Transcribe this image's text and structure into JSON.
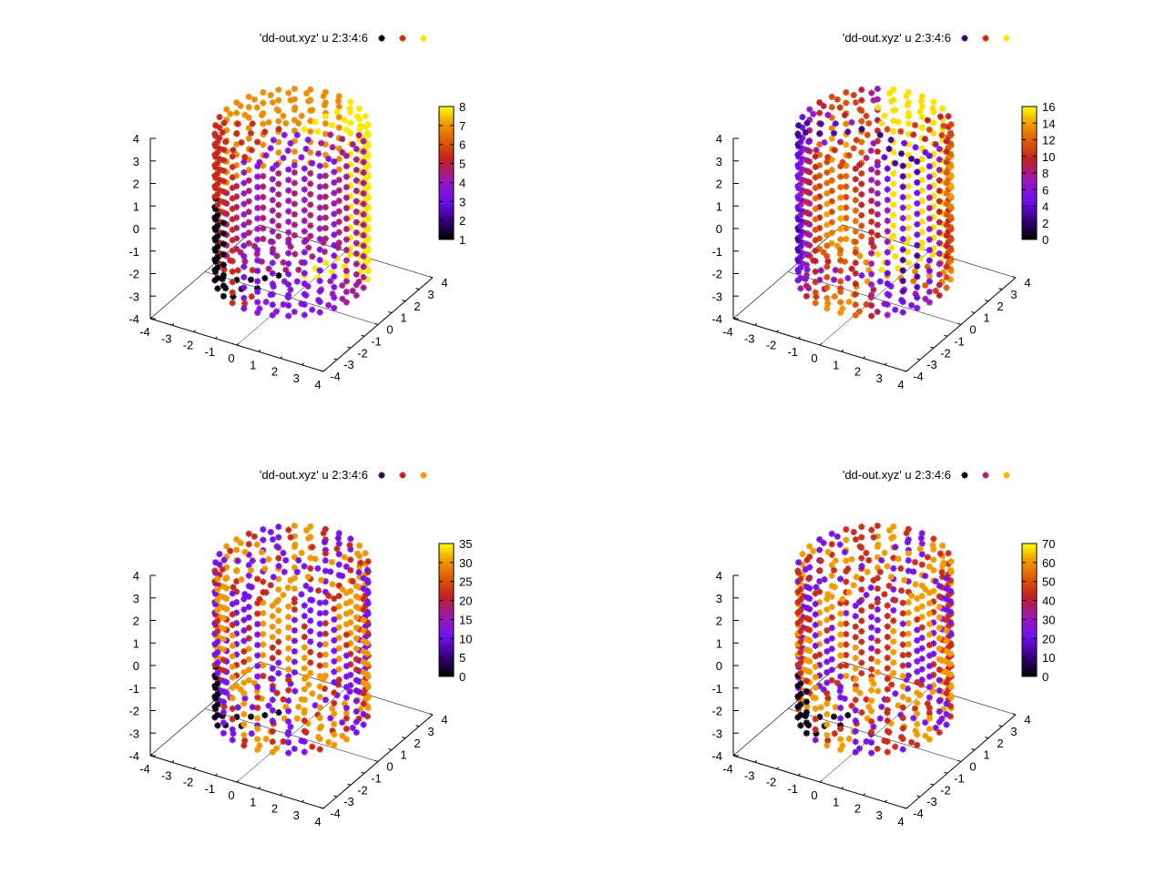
{
  "chart_data": [
    {
      "type": "scatter3d",
      "legend": {
        "label": "'dd-out.xyz' u 2:3:4:6",
        "marker_colors": [
          "#000000",
          "#c03000",
          "#ffe000"
        ]
      },
      "colorbar": {
        "range": [
          1,
          8
        ],
        "ticks": [
          1,
          2,
          3,
          4,
          5,
          6,
          7,
          8
        ]
      },
      "axes": {
        "x": {
          "range": [
            -4,
            4
          ],
          "ticks": [
            -4,
            -3,
            -2,
            -1,
            0,
            1,
            2,
            3,
            4
          ]
        },
        "y": {
          "range": [
            -4,
            4
          ],
          "ticks": [
            -4,
            -3,
            -2,
            -1,
            0,
            1,
            2,
            3,
            4
          ]
        },
        "z": {
          "range": [
            -4,
            4
          ],
          "ticks": [
            -4,
            -3,
            -2,
            -1,
            0,
            1,
            2,
            3,
            4
          ]
        }
      },
      "cylinder": {
        "radius": 3,
        "z_range": [
          -3,
          3.5
        ]
      }
    },
    {
      "type": "scatter3d",
      "legend": {
        "label": "'dd-out.xyz' u 2:3:4:6",
        "marker_colors": [
          "#3a006a",
          "#c03000",
          "#ffe000"
        ]
      },
      "colorbar": {
        "range": [
          0,
          16
        ],
        "ticks": [
          0,
          2,
          4,
          6,
          8,
          10,
          12,
          14,
          16
        ]
      },
      "axes": {
        "x": {
          "range": [
            -4,
            4
          ],
          "ticks": [
            -4,
            -3,
            -2,
            -1,
            0,
            1,
            2,
            3,
            4
          ]
        },
        "y": {
          "range": [
            -4,
            4
          ],
          "ticks": [
            -4,
            -3,
            -2,
            -1,
            0,
            1,
            2,
            3,
            4
          ]
        },
        "z": {
          "range": [
            -4,
            4
          ],
          "ticks": [
            -4,
            -3,
            -2,
            -1,
            0,
            1,
            2,
            3,
            4
          ]
        }
      },
      "cylinder": {
        "radius": 3,
        "z_range": [
          -3,
          3.5
        ]
      }
    },
    {
      "type": "scatter3d",
      "legend": {
        "label": "'dd-out.xyz' u 2:3:4:6",
        "marker_colors": [
          "#2a0040",
          "#c02020",
          "#ff9000"
        ]
      },
      "colorbar": {
        "range": [
          0,
          35
        ],
        "ticks": [
          0,
          5,
          10,
          15,
          20,
          25,
          30,
          35
        ]
      },
      "axes": {
        "x": {
          "range": [
            -4,
            4
          ],
          "ticks": [
            -4,
            -3,
            -2,
            -1,
            0,
            1,
            2,
            3,
            4
          ]
        },
        "y": {
          "range": [
            -4,
            4
          ],
          "ticks": [
            -4,
            -3,
            -2,
            -1,
            0,
            1,
            2,
            3,
            4
          ]
        },
        "z": {
          "range": [
            -4,
            4
          ],
          "ticks": [
            -4,
            -3,
            -2,
            -1,
            0,
            1,
            2,
            3,
            4
          ]
        }
      },
      "cylinder": {
        "radius": 3,
        "z_range": [
          -3,
          3.5
        ]
      }
    },
    {
      "type": "scatter3d",
      "legend": {
        "label": "'dd-out.xyz' u 2:3:4:6",
        "marker_colors": [
          "#000000",
          "#a02060",
          "#ffb000"
        ]
      },
      "colorbar": {
        "range": [
          0,
          70
        ],
        "ticks": [
          0,
          10,
          20,
          30,
          40,
          50,
          60,
          70
        ]
      },
      "axes": {
        "x": {
          "range": [
            -4,
            4
          ],
          "ticks": [
            -4,
            -3,
            -2,
            -1,
            0,
            1,
            2,
            3,
            4
          ]
        },
        "y": {
          "range": [
            -4,
            4
          ],
          "ticks": [
            -4,
            -3,
            -2,
            -1,
            0,
            1,
            2,
            3,
            4
          ]
        },
        "z": {
          "range": [
            -4,
            4
          ],
          "ticks": [
            -4,
            -3,
            -2,
            -1,
            0,
            1,
            2,
            3,
            4
          ]
        }
      },
      "cylinder": {
        "radius": 3,
        "z_range": [
          -3,
          3.5
        ]
      }
    }
  ]
}
